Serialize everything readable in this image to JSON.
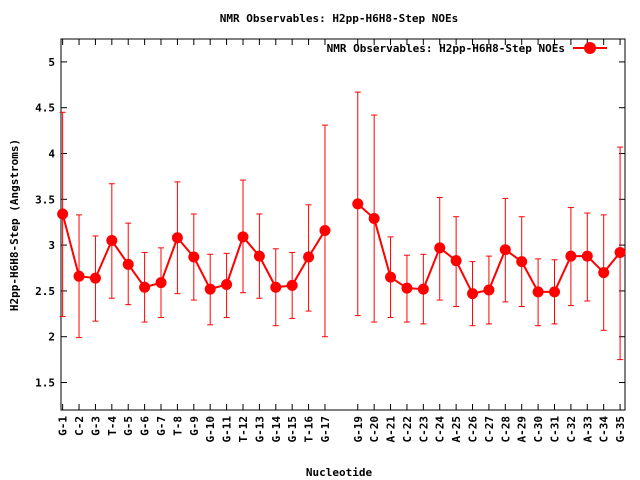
{
  "chart_data": {
    "type": "line",
    "title": "NMR Observables: H2pp-H6H8-Step NOEs",
    "xlabel": "Nucleotide",
    "ylabel": "H2pp-H6H8-Step (Angstroms)",
    "ylim": [
      1.2,
      5.25
    ],
    "yticks": [
      "1.5",
      "2",
      "2.5",
      "3",
      "3.5",
      "4",
      "4.5",
      "5"
    ],
    "legend_position": "top-right",
    "grid": false,
    "series_color": "#ff0000",
    "categories": [
      "G-1",
      "C-2",
      "G-3",
      "T-4",
      "G-5",
      "G-6",
      "G-7",
      "T-8",
      "G-9",
      "G-10",
      "G-11",
      "T-12",
      "G-13",
      "G-14",
      "G-15",
      "T-16",
      "G-17",
      "G-19",
      "C-20",
      "A-21",
      "C-22",
      "C-23",
      "C-24",
      "A-25",
      "C-26",
      "C-27",
      "C-28",
      "A-29",
      "C-30",
      "C-31",
      "C-32",
      "A-33",
      "C-34",
      "G-35"
    ],
    "x": [
      1,
      2,
      3,
      4,
      5,
      6,
      7,
      8,
      9,
      10,
      11,
      12,
      13,
      14,
      15,
      16,
      17,
      19,
      20,
      21,
      22,
      23,
      24,
      25,
      26,
      27,
      28,
      29,
      30,
      31,
      32,
      33,
      34,
      35
    ],
    "series": [
      {
        "name": "NMR Observables: H2pp-H6H8-Step NOEs",
        "values": [
          3.34,
          2.66,
          2.64,
          3.05,
          2.79,
          2.54,
          2.59,
          3.08,
          2.87,
          2.52,
          2.57,
          3.09,
          2.88,
          2.54,
          2.56,
          2.87,
          3.16,
          3.45,
          3.29,
          2.65,
          2.53,
          2.52,
          2.97,
          2.83,
          2.47,
          2.51,
          2.95,
          2.82,
          2.49,
          2.49,
          2.88,
          2.88,
          2.7,
          2.92
        ],
        "err_low": [
          2.22,
          1.99,
          2.17,
          2.42,
          2.35,
          2.16,
          2.21,
          2.47,
          2.4,
          2.13,
          2.21,
          2.48,
          2.42,
          2.12,
          2.2,
          2.28,
          2.0,
          2.23,
          2.16,
          2.21,
          2.16,
          2.14,
          2.4,
          2.33,
          2.12,
          2.14,
          2.38,
          2.33,
          2.12,
          2.14,
          2.34,
          2.39,
          2.07,
          1.75
        ],
        "err_high": [
          4.45,
          3.33,
          3.1,
          3.67,
          3.24,
          2.92,
          2.97,
          3.69,
          3.34,
          2.9,
          2.91,
          3.71,
          3.34,
          2.96,
          2.92,
          3.44,
          4.31,
          4.67,
          4.42,
          3.09,
          2.89,
          2.9,
          3.52,
          3.31,
          2.82,
          2.88,
          3.51,
          3.31,
          2.85,
          2.84,
          3.41,
          3.35,
          3.33,
          4.07
        ]
      }
    ]
  }
}
